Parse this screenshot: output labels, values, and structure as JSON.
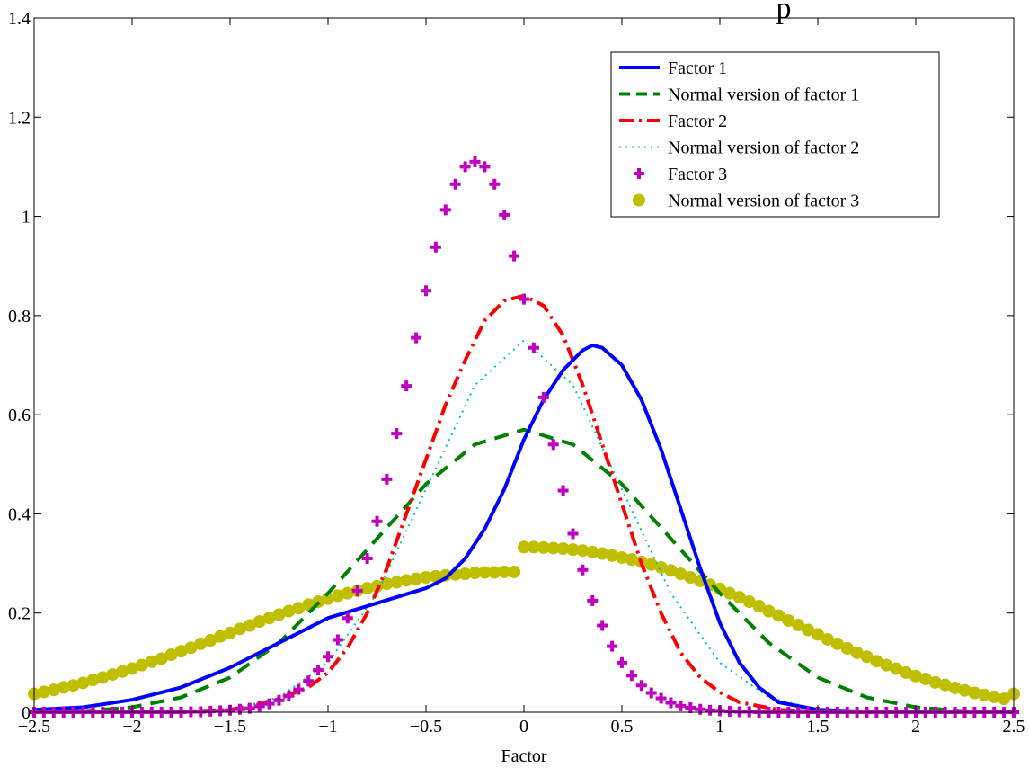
{
  "chart_data": {
    "type": "line",
    "title": "p",
    "xlabel": "Factor",
    "ylabel": "",
    "xlim": [
      -2.5,
      2.5
    ],
    "ylim": [
      0,
      1.4
    ],
    "xticks": [
      "−2.5",
      "−2",
      "−1.5",
      "−1",
      "−0.5",
      "0",
      "0.5",
      "1",
      "1.5",
      "2",
      "2.5"
    ],
    "yticks": [
      "0",
      "0.2",
      "0.4",
      "0.6",
      "0.8",
      "1",
      "1.2",
      "1.4"
    ],
    "grid": false,
    "legend_position": "top-right",
    "colors": {
      "factor1": "#0000ff",
      "normal1": "#008000",
      "factor2": "#ff0000",
      "normal2": "#00bfbf",
      "factor3": "#bf00bf",
      "normal3": "#bfbf00"
    },
    "series": [
      {
        "name": "Factor 1",
        "style": "solid",
        "x": [
          -2.5,
          -2.25,
          -2.0,
          -1.75,
          -1.5,
          -1.25,
          -1.0,
          -0.75,
          -0.5,
          -0.4,
          -0.3,
          -0.2,
          -0.1,
          0.0,
          0.1,
          0.2,
          0.3,
          0.35,
          0.4,
          0.5,
          0.6,
          0.7,
          0.8,
          0.9,
          1.0,
          1.1,
          1.2,
          1.3,
          1.5,
          1.75,
          2.0,
          2.25,
          2.5
        ],
        "y": [
          0.005,
          0.01,
          0.025,
          0.05,
          0.09,
          0.14,
          0.19,
          0.22,
          0.25,
          0.27,
          0.31,
          0.37,
          0.45,
          0.55,
          0.63,
          0.69,
          0.73,
          0.74,
          0.735,
          0.7,
          0.63,
          0.53,
          0.41,
          0.29,
          0.18,
          0.1,
          0.05,
          0.02,
          0.005,
          0.001,
          0.0,
          0.0,
          0.0
        ]
      },
      {
        "name": "Normal version of factor 1",
        "style": "dashed",
        "x": [
          -2.5,
          -2.25,
          -2.0,
          -1.75,
          -1.5,
          -1.25,
          -1.0,
          -0.75,
          -0.5,
          -0.25,
          0.0,
          0.25,
          0.5,
          0.75,
          1.0,
          1.25,
          1.5,
          1.75,
          2.0,
          2.25,
          2.5
        ],
        "y": [
          0.0,
          0.002,
          0.01,
          0.03,
          0.07,
          0.14,
          0.24,
          0.35,
          0.46,
          0.54,
          0.57,
          0.54,
          0.46,
          0.35,
          0.24,
          0.14,
          0.07,
          0.03,
          0.01,
          0.002,
          0.0
        ]
      },
      {
        "name": "Factor 2",
        "style": "dashdot",
        "x": [
          -2.5,
          -2.0,
          -1.75,
          -1.5,
          -1.3,
          -1.1,
          -1.0,
          -0.9,
          -0.8,
          -0.7,
          -0.6,
          -0.5,
          -0.4,
          -0.3,
          -0.2,
          -0.1,
          0.0,
          0.1,
          0.2,
          0.3,
          0.4,
          0.5,
          0.6,
          0.7,
          0.8,
          0.9,
          1.0,
          1.1,
          1.3,
          1.5,
          2.0,
          2.5
        ],
        "y": [
          0.0,
          0.0,
          0.001,
          0.005,
          0.02,
          0.05,
          0.08,
          0.13,
          0.2,
          0.29,
          0.4,
          0.51,
          0.62,
          0.71,
          0.79,
          0.83,
          0.84,
          0.82,
          0.76,
          0.66,
          0.54,
          0.42,
          0.3,
          0.2,
          0.12,
          0.07,
          0.04,
          0.02,
          0.005,
          0.001,
          0.0,
          0.0
        ]
      },
      {
        "name": "Normal version of factor 2",
        "style": "dotted",
        "x": [
          -2.5,
          -2.0,
          -1.75,
          -1.5,
          -1.25,
          -1.0,
          -0.75,
          -0.5,
          -0.25,
          0.0,
          0.25,
          0.5,
          0.75,
          1.0,
          1.25,
          1.5,
          1.75,
          2.0,
          2.5
        ],
        "y": [
          0.0,
          0.0,
          0.001,
          0.005,
          0.03,
          0.1,
          0.24,
          0.45,
          0.66,
          0.75,
          0.66,
          0.45,
          0.24,
          0.1,
          0.03,
          0.005,
          0.001,
          0.0,
          0.0
        ]
      },
      {
        "name": "Factor 3",
        "style": "plus-markers",
        "x": [
          -2.5,
          -2.45,
          -2.4,
          -2.35,
          -2.3,
          -2.25,
          -2.2,
          -2.15,
          -2.1,
          -2.05,
          -2.0,
          -1.95,
          -1.9,
          -1.85,
          -1.8,
          -1.75,
          -1.7,
          -1.65,
          -1.6,
          -1.55,
          -1.5,
          -1.45,
          -1.4,
          -1.35,
          -1.3,
          -1.25,
          -1.2,
          -1.15,
          -1.1,
          -1.05,
          -1.0,
          -0.95,
          -0.9,
          -0.85,
          -0.8,
          -0.75,
          -0.7,
          -0.65,
          -0.6,
          -0.55,
          -0.5,
          -0.45,
          -0.4,
          -0.35,
          -0.3,
          -0.25,
          -0.2,
          -0.15,
          -0.1,
          -0.05,
          0.0,
          0.05,
          0.1,
          0.15,
          0.2,
          0.25,
          0.3,
          0.35,
          0.4,
          0.45,
          0.5,
          0.55,
          0.6,
          0.65,
          0.7,
          0.75,
          0.8,
          0.85,
          0.9,
          0.95,
          1.0,
          1.05,
          1.1,
          1.15,
          1.2,
          1.25,
          1.3,
          1.35,
          1.4,
          1.45,
          1.5,
          1.55,
          1.6,
          1.65,
          1.7,
          1.75,
          1.8,
          1.85,
          1.9,
          1.95,
          2.0,
          2.05,
          2.1,
          2.15,
          2.2,
          2.25,
          2.3,
          2.35,
          2.4,
          2.45,
          2.5
        ],
        "y": [
          0.0,
          0.0,
          0.0,
          0.0,
          0.0,
          0.0,
          0.0,
          0.0,
          0.0,
          0.0,
          0.0,
          0.0,
          0.0,
          0.0,
          0.0,
          0.0,
          0.001,
          0.001,
          0.002,
          0.003,
          0.004,
          0.006,
          0.008,
          0.012,
          0.017,
          0.024,
          0.033,
          0.046,
          0.063,
          0.085,
          0.112,
          0.146,
          0.19,
          0.245,
          0.31,
          0.385,
          0.47,
          0.562,
          0.658,
          0.755,
          0.85,
          0.938,
          1.013,
          1.065,
          1.1,
          1.11,
          1.1,
          1.065,
          1.003,
          0.92,
          0.833,
          0.735,
          0.635,
          0.54,
          0.447,
          0.36,
          0.287,
          0.225,
          0.175,
          0.133,
          0.1,
          0.074,
          0.054,
          0.039,
          0.028,
          0.019,
          0.013,
          0.009,
          0.006,
          0.004,
          0.003,
          0.002,
          0.001,
          0.001,
          0.0,
          0.0,
          0.0,
          0.0,
          0.0,
          0.0,
          0.0,
          0.0,
          0.0,
          0.0,
          0.0,
          0.0,
          0.0,
          0.0,
          0.0,
          0.0,
          0.0,
          0.0,
          0.0,
          0.0,
          0.0,
          0.0,
          0.0,
          0.0,
          0.0,
          0.0,
          0.0
        ]
      },
      {
        "name": "Normal version of factor 3",
        "style": "circle-markers",
        "x": [
          -2.5,
          -2.45,
          -2.4,
          -2.35,
          -2.3,
          -2.25,
          -2.2,
          -2.15,
          -2.1,
          -2.05,
          -2.0,
          -1.95,
          -1.9,
          -1.85,
          -1.8,
          -1.75,
          -1.7,
          -1.65,
          -1.6,
          -1.55,
          -1.5,
          -1.45,
          -1.4,
          -1.35,
          -1.3,
          -1.25,
          -1.2,
          -1.15,
          -1.1,
          -1.05,
          -1.0,
          -0.95,
          -0.9,
          -0.85,
          -0.8,
          -0.75,
          -0.7,
          -0.65,
          -0.6,
          -0.55,
          -0.5,
          -0.45,
          -0.4,
          -0.35,
          -0.3,
          -0.25,
          -0.2,
          -0.15,
          -0.1,
          -0.05,
          0.0,
          0.05,
          0.1,
          0.15,
          0.2,
          0.25,
          0.3,
          0.35,
          0.4,
          0.45,
          0.5,
          0.55,
          0.6,
          0.65,
          0.7,
          0.75,
          0.8,
          0.85,
          0.9,
          0.95,
          1.0,
          1.05,
          1.1,
          1.15,
          1.2,
          1.25,
          1.3,
          1.35,
          1.4,
          1.45,
          1.5,
          1.55,
          1.6,
          1.65,
          1.7,
          1.75,
          1.8,
          1.85,
          1.9,
          1.95,
          2.0,
          2.05,
          2.1,
          2.15,
          2.2,
          2.25,
          2.3,
          2.35,
          2.4,
          2.45,
          2.5
        ],
        "y": [
          0.037,
          0.041,
          0.045,
          0.05,
          0.054,
          0.059,
          0.065,
          0.07,
          0.076,
          0.082,
          0.088,
          0.095,
          0.102,
          0.108,
          0.116,
          0.123,
          0.13,
          0.138,
          0.145,
          0.153,
          0.16,
          0.168,
          0.175,
          0.183,
          0.19,
          0.197,
          0.204,
          0.21,
          0.217,
          0.223,
          0.229,
          0.235,
          0.24,
          0.245,
          0.25,
          0.254,
          0.259,
          0.262,
          0.266,
          0.269,
          0.272,
          0.274,
          0.276,
          0.278,
          0.279,
          0.281,
          0.282,
          0.282,
          0.283,
          0.283,
          0.333,
          0.333,
          0.332,
          0.331,
          0.33,
          0.328,
          0.326,
          0.323,
          0.32,
          0.316,
          0.312,
          0.308,
          0.303,
          0.298,
          0.292,
          0.286,
          0.279,
          0.272,
          0.265,
          0.257,
          0.249,
          0.24,
          0.232,
          0.223,
          0.214,
          0.204,
          0.195,
          0.185,
          0.176,
          0.166,
          0.157,
          0.147,
          0.138,
          0.129,
          0.12,
          0.112,
          0.103,
          0.095,
          0.088,
          0.08,
          0.073,
          0.067,
          0.06,
          0.055,
          0.049,
          0.044,
          0.039,
          0.035,
          0.031,
          0.027,
          0.037
        ]
      }
    ]
  }
}
